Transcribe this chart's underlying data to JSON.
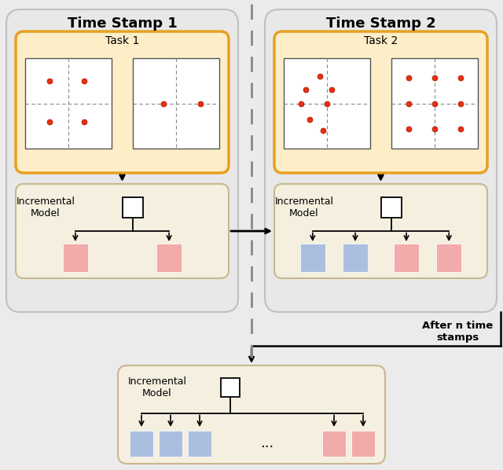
{
  "bg_color": "#ebebeb",
  "orange_border": "#E8A020",
  "task_bg": "#FDEEC8",
  "model_bg": "#F5EFE0",
  "outer_bg": "#E8E8E8",
  "outer_border": "#C0C0C0",
  "pink_color": "#F2AAAA",
  "blue_color": "#AABFE0",
  "dot_color": "#E83010",
  "dot_edge": "#AA1000",
  "ts1_label": "Time Stamp 1",
  "ts2_label": "Time Stamp 2",
  "task1_label": "Task 1",
  "task2_label": "Task 2",
  "inc_model_label": "Incremental\nModel",
  "after_n_label": "After n time\nstamps",
  "figw": 6.4,
  "figh": 5.98,
  "dpi": 100
}
